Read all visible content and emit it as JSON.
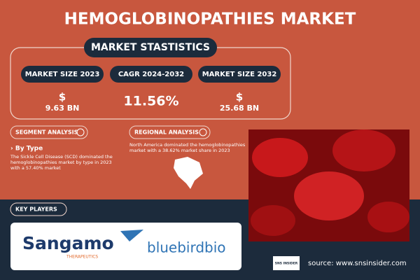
{
  "header": {
    "title": "HEMOGLOBINOPATHIES MARKET"
  },
  "statistics": {
    "heading": "MARKET STASTISTICS",
    "items": [
      {
        "label": "MARKET SIZE 2023",
        "currency": "$",
        "amount": "9.63 BN"
      },
      {
        "label": "CAGR 2024-2032",
        "amount": "11.56%"
      },
      {
        "label": "MARKET SIZE 2032",
        "currency": "$",
        "amount": "25.68 BN"
      }
    ]
  },
  "segment": {
    "heading": "SEGMENT ANALYSIS",
    "subheading": "› By Type",
    "text": [
      "The Sickle Cell Disease (SCD) dominated the",
      "hemoglobinopathies market by type in 2023",
      "with a 57.40% market"
    ]
  },
  "regional": {
    "heading": "REGIONAL ANALYSIS",
    "text": [
      "North America dominated the hemoglobinopathies",
      "market with a 38.62% market share in 2023"
    ]
  },
  "key_players": {
    "heading": "KEY PLAYERS",
    "logos": [
      {
        "name": "Sangamo",
        "tagline": "THERAPEUTICS"
      },
      {
        "name": "bluebirdbio"
      }
    ]
  },
  "footer": {
    "brand": "SNS INSIDER",
    "source": "source: www.snsinsider.com"
  }
}
